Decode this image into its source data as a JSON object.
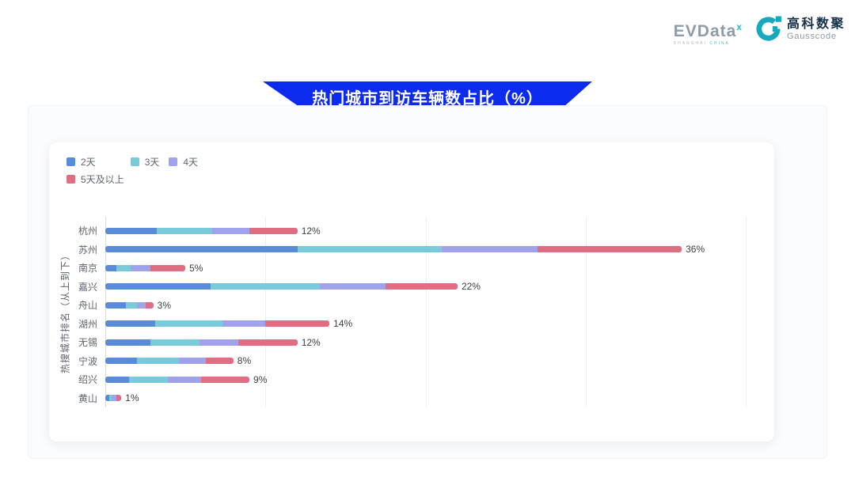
{
  "header": {
    "evdata": {
      "word": "EVData",
      "sup": "x",
      "sub1": "SHANGHAI",
      "sub2": "CHINA"
    },
    "gausscode": {
      "icon": "gausscode-g-icon",
      "cn": "高科数聚",
      "en": "Gausscode"
    },
    "brand_teal": "#16A9BE"
  },
  "banner": {
    "color": "#0D2BEE"
  },
  "chart_data": {
    "type": "bar",
    "orientation": "horizontal",
    "stacked": true,
    "title": "热门城市到访车辆数占比（%）",
    "ylabel": "热搜城市排名（从上到下）",
    "xlim": [
      0,
      40
    ],
    "gridline_values": [
      0,
      10,
      20,
      30,
      40
    ],
    "grid": true,
    "legend_position": "top-left",
    "categories": [
      "杭州",
      "苏州",
      "南京",
      "嘉兴",
      "舟山",
      "湖州",
      "无锡",
      "宁波",
      "绍兴",
      "黄山"
    ],
    "series": [
      {
        "name": "2天",
        "color": "#5A8BD8",
        "values": [
          3.2,
          12.0,
          0.7,
          6.6,
          1.3,
          3.1,
          2.8,
          2.0,
          1.5,
          0.25
        ]
      },
      {
        "name": "3天",
        "color": "#79CBDB",
        "values": [
          3.5,
          9.0,
          0.9,
          6.8,
          0.7,
          4.2,
          3.1,
          2.6,
          2.4,
          0.15
        ]
      },
      {
        "name": "4天",
        "color": "#A0A2EC",
        "values": [
          2.3,
          6.0,
          1.2,
          4.1,
          0.5,
          2.7,
          2.4,
          1.7,
          2.1,
          0.3
        ]
      },
      {
        "name": "5天及以上",
        "color": "#DF6E82",
        "values": [
          3.0,
          9.0,
          2.2,
          4.5,
          0.5,
          4.0,
          3.7,
          1.7,
          3.0,
          0.3
        ]
      }
    ],
    "totals": [
      12,
      36,
      5,
      22,
      3,
      14,
      12,
      8,
      9,
      1
    ],
    "totals_labels": [
      "12%",
      "36%",
      "5%",
      "22%",
      "3%",
      "14%",
      "12%",
      "8%",
      "9%",
      "1%"
    ]
  }
}
